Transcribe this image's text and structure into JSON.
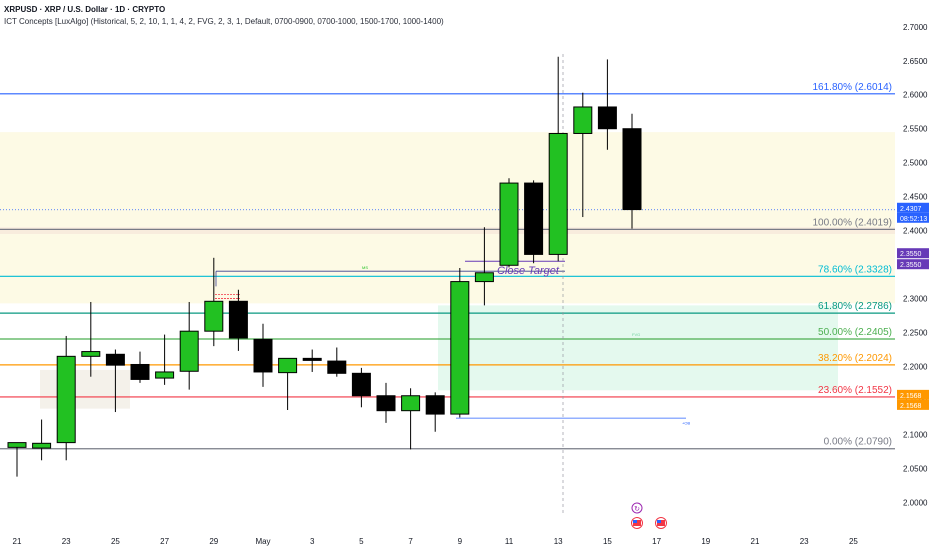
{
  "header": {
    "symbol_line": "XRPUSD · XRP / U.S. Dollar · 1D · CRYPTO",
    "indicator_line": "ICT Concepts [LuxAlgo] (Historical, 5, 2, 10, 1, 1, 4, 2, FVG, 2, 3, 1, Default, 0700-0900, 0700-1000, 1500-1700, 1000-1400)"
  },
  "colors": {
    "bull": "#22c122",
    "bear": "#000000",
    "premium_zone": "#fdfae5",
    "fvg_zone": "#e4f9ee",
    "fib_1618": "#2962ff",
    "fib_100": "#787b86",
    "fib_786": "#00bcd4",
    "fib_618": "#089981",
    "fib_50": "#4caf50",
    "fib_382": "#ff9800",
    "fib_236": "#f23645",
    "fib_0": "#787b86",
    "target": "#673ab7"
  },
  "chart_data": {
    "type": "candlestick",
    "title": "XRPUSD · XRP / U.S. Dollar · 1D · CRYPTO",
    "xlabel": "",
    "ylabel": "",
    "ylim": [
      1.98,
      2.71
    ],
    "x_ticks": [
      "21",
      "23",
      "25",
      "27",
      "29",
      "May",
      "3",
      "5",
      "7",
      "9",
      "11",
      "13",
      "15",
      "17",
      "19",
      "21",
      "23",
      "25"
    ],
    "y_ticks": [
      "2.7000",
      "2.6500",
      "2.6000",
      "2.5500",
      "2.5000",
      "2.4500",
      "2.4000",
      "2.3500",
      "2.3000",
      "2.2500",
      "2.2000",
      "2.1500",
      "2.1000",
      "2.0500",
      "2.0000"
    ],
    "candles": [
      {
        "o": 2.081,
        "h": 2.087,
        "l": 2.038,
        "c": 2.088
      },
      {
        "o": 2.08,
        "h": 2.122,
        "l": 2.062,
        "c": 2.087
      },
      {
        "o": 2.088,
        "h": 2.245,
        "l": 2.062,
        "c": 2.215
      },
      {
        "o": 2.215,
        "h": 2.295,
        "l": 2.185,
        "c": 2.222
      },
      {
        "o": 2.218,
        "h": 2.225,
        "l": 2.133,
        "c": 2.202
      },
      {
        "o": 2.203,
        "h": 2.222,
        "l": 2.176,
        "c": 2.181
      },
      {
        "o": 2.183,
        "h": 2.247,
        "l": 2.173,
        "c": 2.192
      },
      {
        "o": 2.193,
        "h": 2.295,
        "l": 2.166,
        "c": 2.252
      },
      {
        "o": 2.252,
        "h": 2.36,
        "l": 2.23,
        "c": 2.296
      },
      {
        "o": 2.296,
        "h": 2.313,
        "l": 2.223,
        "c": 2.242
      },
      {
        "o": 2.24,
        "h": 2.263,
        "l": 2.17,
        "c": 2.192
      },
      {
        "o": 2.191,
        "h": 2.212,
        "l": 2.136,
        "c": 2.212
      },
      {
        "o": 2.212,
        "h": 2.225,
        "l": 2.192,
        "c": 2.209
      },
      {
        "o": 2.208,
        "h": 2.228,
        "l": 2.185,
        "c": 2.19
      },
      {
        "o": 2.19,
        "h": 2.198,
        "l": 2.14,
        "c": 2.157
      },
      {
        "o": 2.157,
        "h": 2.176,
        "l": 2.117,
        "c": 2.135
      },
      {
        "o": 2.135,
        "h": 2.168,
        "l": 2.078,
        "c": 2.157
      },
      {
        "o": 2.157,
        "h": 2.162,
        "l": 2.104,
        "c": 2.13
      },
      {
        "o": 2.13,
        "h": 2.345,
        "l": 2.125,
        "c": 2.325
      },
      {
        "o": 2.325,
        "h": 2.405,
        "l": 2.29,
        "c": 2.338
      },
      {
        "o": 2.349,
        "h": 2.477,
        "l": 2.346,
        "c": 2.47
      },
      {
        "o": 2.47,
        "h": 2.474,
        "l": 2.352,
        "c": 2.365
      },
      {
        "o": 2.365,
        "h": 2.656,
        "l": 2.355,
        "c": 2.543
      },
      {
        "o": 2.543,
        "h": 2.603,
        "l": 2.42,
        "c": 2.582
      },
      {
        "o": 2.582,
        "h": 2.652,
        "l": 2.519,
        "c": 2.55
      },
      {
        "o": 2.55,
        "h": 2.572,
        "l": 2.403,
        "c": 2.431
      }
    ],
    "fib_levels": [
      {
        "label": "161.80% (2.6014)",
        "value": 2.6014,
        "color": "#2962ff"
      },
      {
        "label": "100.00% (2.4019)",
        "value": 2.4019,
        "color": "#787b86"
      },
      {
        "label": "78.60% (2.3328)",
        "value": 2.3328,
        "color": "#00bcd4"
      },
      {
        "label": "61.80% (2.2786)",
        "value": 2.2786,
        "color": "#089981"
      },
      {
        "label": "50.00% (2.2405)",
        "value": 2.2405,
        "color": "#4caf50"
      },
      {
        "label": "38.20% (2.2024)",
        "value": 2.2024,
        "color": "#ff9800"
      },
      {
        "label": "23.60% (2.1552)",
        "value": 2.1552,
        "color": "#f23645"
      },
      {
        "label": "0.00% (2.0790)",
        "value": 2.079,
        "color": "#787b86"
      }
    ],
    "current_price": {
      "value": 2.4307,
      "label": "2.4307",
      "countdown": "08:52:13",
      "color": "#2962ff"
    },
    "price_tags": [
      {
        "value": 2.355,
        "label": "2.3550",
        "color": "#673ab7"
      },
      {
        "value": 2.355,
        "label": "2.3550",
        "color": "#673ab7"
      },
      {
        "value": 2.1568,
        "label": "2.1568",
        "color": "#ff9800"
      },
      {
        "value": 2.1568,
        "label": "2.1568",
        "color": "#ff9800"
      }
    ],
    "annotations": {
      "close_target": "Close Target",
      "mss_label": "MS",
      "fvg_label": "FVG",
      "ob_label": "+OB"
    }
  }
}
